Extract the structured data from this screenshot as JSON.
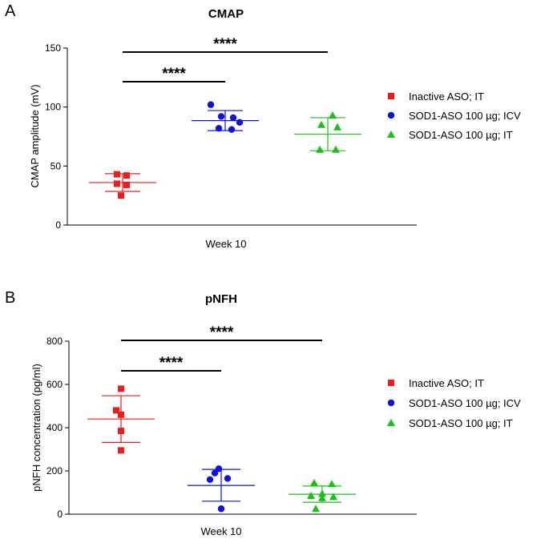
{
  "colors": {
    "red": "#ee1c1c",
    "blue": "#1010e0",
    "green": "#18c018"
  },
  "chart_data": [
    {
      "panel": "A",
      "type": "scatter",
      "title": "CMAP",
      "ylabel": "CMAP amplitude (mV)",
      "xlabel": "Week 10",
      "ylim": [
        0,
        150
      ],
      "yticks": [
        "0",
        "50",
        "100",
        "150"
      ],
      "ytick_values": [
        0,
        50,
        100,
        150
      ],
      "series": [
        {
          "name": "Inactive ASO;  IT",
          "marker": "square",
          "color": "#ee1c1c",
          "values": [
            43,
            42,
            35,
            34,
            25
          ],
          "mean": 36,
          "sd_low": 28.5,
          "sd_high": 43.5
        },
        {
          "name": "SOD1-ASO 100 µg; ICV",
          "marker": "circle",
          "color": "#1010e0",
          "values": [
            102,
            92,
            91,
            87,
            82,
            81
          ],
          "mean": 88.5,
          "sd_low": 80,
          "sd_high": 97
        },
        {
          "name": "SOD1-ASO 100 µg; IT",
          "marker": "triangle",
          "color": "#18c018",
          "values": [
            93,
            85,
            83,
            64,
            64
          ],
          "mean": 77,
          "sd_low": 63,
          "sd_high": 91
        }
      ],
      "significance": [
        {
          "label": "****",
          "from": 0,
          "to": 1
        },
        {
          "label": "****",
          "from": 0,
          "to": 2
        }
      ]
    },
    {
      "panel": "B",
      "type": "scatter",
      "title": "pNFH",
      "ylabel": "pNFH concentration (pg/ml)",
      "xlabel": "Week 10",
      "ylim": [
        0,
        800
      ],
      "yticks": [
        "0",
        "200",
        "400",
        "600",
        "800"
      ],
      "ytick_values": [
        0,
        200,
        400,
        600,
        800
      ],
      "series": [
        {
          "name": "Inactive ASO; IT",
          "marker": "square",
          "color": "#ee1c1c",
          "values": [
            580,
            480,
            460,
            385,
            295
          ],
          "mean": 440,
          "sd_low": 332,
          "sd_high": 548
        },
        {
          "name": "SOD1-ASO 100 µg; ICV",
          "marker": "circle",
          "color": "#1010e0",
          "values": [
            210,
            190,
            165,
            160,
            25
          ],
          "mean": 133,
          "sd_low": 60,
          "sd_high": 207
        },
        {
          "name": "SOD1-ASO 100 µg; IT",
          "marker": "triangle",
          "color": "#18c018",
          "values": [
            145,
            140,
            95,
            85,
            80,
            75,
            25
          ],
          "mean": 92,
          "sd_low": 55,
          "sd_high": 130
        }
      ],
      "significance": [
        {
          "label": "****",
          "from": 0,
          "to": 1
        },
        {
          "label": "****",
          "from": 0,
          "to": 2
        }
      ]
    }
  ]
}
